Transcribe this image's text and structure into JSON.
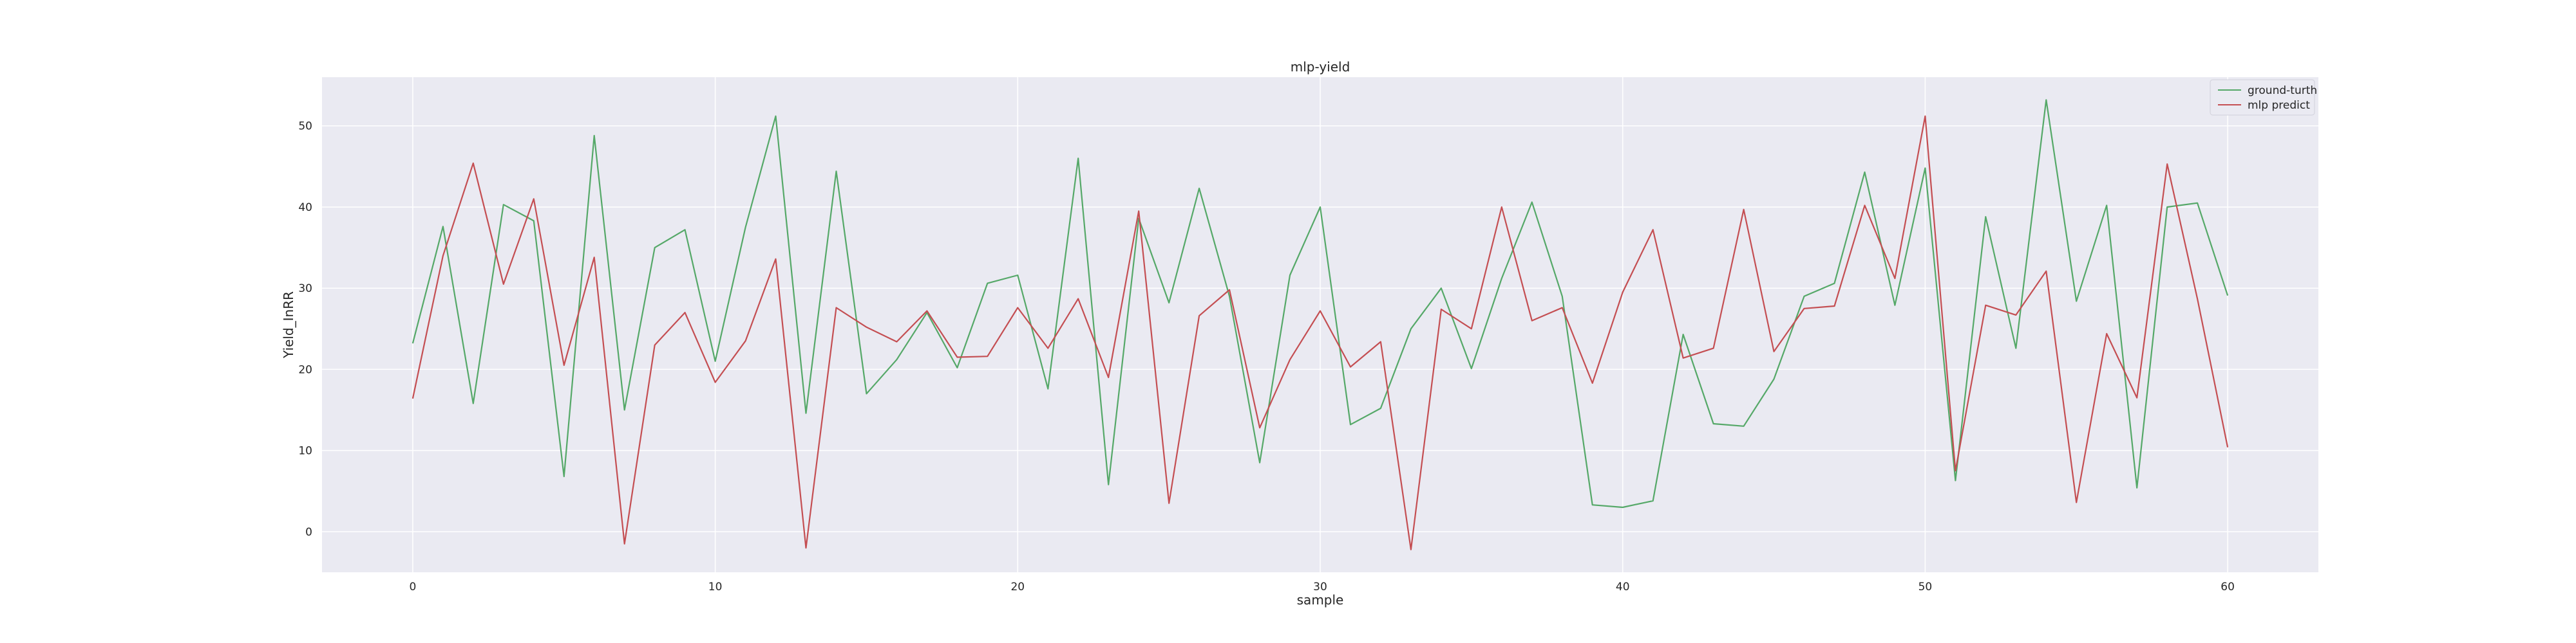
{
  "chart_data": {
    "type": "line",
    "title": "mlp-yield",
    "xlabel": "sample",
    "ylabel": "Yield_InRR",
    "xlim": [
      -3,
      63
    ],
    "ylim": [
      -5,
      56
    ],
    "xticks": [
      0,
      10,
      20,
      30,
      40,
      50,
      60
    ],
    "yticks": [
      0,
      10,
      20,
      30,
      40,
      50
    ],
    "grid": true,
    "legend_position": "top-right",
    "background_color": "#eaeaf2",
    "x": [
      0,
      1,
      2,
      3,
      4,
      5,
      6,
      7,
      8,
      9,
      10,
      11,
      12,
      13,
      14,
      15,
      16,
      17,
      18,
      19,
      20,
      21,
      22,
      23,
      24,
      25,
      26,
      27,
      28,
      29,
      30,
      31,
      32,
      33,
      34,
      35,
      36,
      37,
      38,
      39,
      40,
      41,
      42,
      43,
      44,
      45,
      46,
      47,
      48,
      49,
      50,
      51,
      52,
      53,
      54,
      55,
      56,
      57,
      58,
      59,
      60
    ],
    "series": [
      {
        "name": "ground-turth",
        "color": "#55a868",
        "values": [
          23.2,
          37.6,
          15.8,
          40.3,
          38.3,
          6.8,
          48.8,
          15.0,
          35.0,
          37.2,
          21.0,
          37.5,
          51.2,
          14.6,
          44.4,
          17.0,
          21.2,
          27.0,
          20.2,
          30.6,
          31.6,
          17.6,
          46.0,
          5.8,
          38.6,
          28.2,
          42.3,
          29.0,
          8.5,
          31.6,
          40.0,
          13.2,
          15.2,
          25.0,
          30.0,
          20.1,
          31.2,
          40.6,
          29.0,
          3.3,
          3.0,
          3.8,
          24.3,
          13.3,
          13.0,
          18.8,
          29.0,
          30.6,
          44.3,
          27.9,
          44.8,
          6.3,
          38.8,
          22.6,
          53.2,
          28.4,
          40.2,
          5.4,
          40.0,
          40.5,
          29.1
        ]
      },
      {
        "name": "mlp predict",
        "color": "#c44e52",
        "values": [
          16.4,
          34.0,
          45.4,
          30.5,
          41.0,
          20.5,
          33.8,
          -1.5,
          23.0,
          27.0,
          18.4,
          23.5,
          33.6,
          -2.0,
          27.6,
          25.2,
          23.4,
          27.2,
          21.5,
          21.6,
          27.6,
          22.6,
          28.7,
          19.0,
          39.5,
          3.5,
          26.6,
          29.8,
          12.8,
          21.2,
          27.2,
          20.3,
          23.4,
          -2.2,
          27.4,
          25.0,
          40.0,
          26.0,
          27.6,
          18.3,
          29.5,
          37.2,
          21.4,
          22.6,
          39.7,
          22.2,
          27.5,
          27.8,
          40.2,
          31.2,
          51.2,
          7.5,
          27.9,
          26.7,
          32.1,
          3.6,
          24.4,
          16.5,
          45.3,
          28.7,
          10.4
        ]
      }
    ]
  }
}
